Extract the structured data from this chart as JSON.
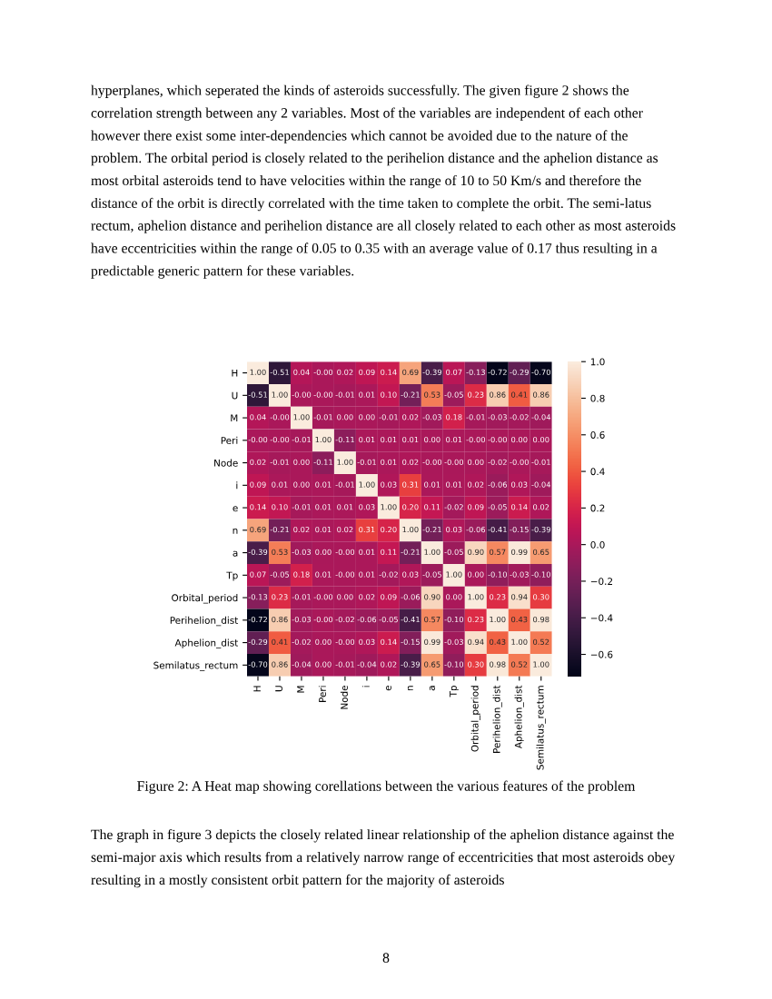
{
  "chart_data": {
    "type": "heatmap",
    "categories": [
      "H",
      "U",
      "M",
      "Peri",
      "Node",
      "i",
      "e",
      "n",
      "a",
      "Tp",
      "Orbital_period",
      "Perihelion_dist",
      "Aphelion_dist",
      "Semilatus_rectum"
    ],
    "y_categories": [
      "H",
      "U",
      "M",
      "Peri",
      "Node",
      "i",
      "e",
      "n",
      "a",
      "Tp",
      "Orbital_period",
      "Perihelion_dist",
      "Aphelion_dist",
      "Semilatus_rectum"
    ],
    "cells": [
      [
        1.0,
        -0.51,
        0.04,
        0.0,
        0.02,
        0.09,
        0.14,
        0.69,
        -0.39,
        0.07,
        -0.13,
        -0.72,
        -0.29,
        -0.7
      ],
      [
        -0.51,
        1.0,
        0.0,
        0.0,
        -0.01,
        0.01,
        0.1,
        -0.21,
        0.53,
        -0.05,
        0.23,
        0.86,
        0.41,
        0.86
      ],
      [
        0.04,
        0.0,
        1.0,
        -0.01,
        0.0,
        0.0,
        -0.01,
        0.02,
        -0.03,
        0.18,
        -0.01,
        -0.03,
        -0.02,
        -0.04
      ],
      [
        0.0,
        0.0,
        -0.01,
        1.0,
        -0.11,
        0.01,
        0.01,
        0.01,
        0.0,
        0.01,
        0.0,
        0.0,
        0.0,
        0.0
      ],
      [
        0.02,
        -0.01,
        0.0,
        -0.11,
        1.0,
        -0.01,
        0.01,
        0.02,
        0.0,
        0.0,
        0.0,
        -0.02,
        0.0,
        -0.01
      ],
      [
        0.09,
        0.01,
        0.0,
        0.01,
        -0.01,
        1.0,
        0.03,
        0.31,
        0.01,
        0.01,
        0.02,
        -0.06,
        0.03,
        -0.04
      ],
      [
        0.14,
        0.1,
        -0.01,
        0.01,
        0.01,
        0.03,
        1.0,
        0.2,
        0.11,
        -0.02,
        0.09,
        -0.05,
        0.14,
        0.02
      ],
      [
        0.69,
        -0.21,
        0.02,
        0.01,
        0.02,
        0.31,
        0.2,
        1.0,
        -0.21,
        0.03,
        -0.06,
        -0.41,
        -0.15,
        -0.39
      ],
      [
        -0.39,
        0.53,
        -0.03,
        0.0,
        0.0,
        0.01,
        0.11,
        -0.21,
        1.0,
        -0.05,
        0.9,
        0.57,
        0.99,
        0.65
      ],
      [
        0.07,
        -0.05,
        0.18,
        0.01,
        0.0,
        0.01,
        -0.02,
        0.03,
        -0.05,
        1.0,
        0.0,
        -0.1,
        -0.03,
        -0.1
      ],
      [
        -0.13,
        0.23,
        -0.01,
        0.0,
        0.0,
        0.02,
        0.09,
        -0.06,
        0.9,
        0.0,
        1.0,
        0.23,
        0.94,
        0.3
      ],
      [
        -0.72,
        0.86,
        -0.03,
        0.0,
        -0.02,
        -0.06,
        -0.05,
        -0.41,
        0.57,
        -0.1,
        0.23,
        1.0,
        0.43,
        0.98
      ],
      [
        -0.29,
        0.41,
        -0.02,
        0.0,
        0.0,
        0.03,
        0.14,
        -0.15,
        0.99,
        -0.03,
        0.94,
        0.43,
        1.0,
        0.52
      ],
      [
        -0.7,
        0.86,
        -0.04,
        0.0,
        -0.01,
        -0.04,
        0.02,
        -0.39,
        0.65,
        -0.1,
        0.3,
        0.98,
        0.52,
        1.0
      ]
    ],
    "cell_labels": [
      [
        "1.00",
        "-0.51",
        "0.04",
        "-0.00",
        "0.02",
        "0.09",
        "0.14",
        "0.69",
        "-0.39",
        "0.07",
        "-0.13",
        "-0.72",
        "-0.29",
        "-0.70"
      ],
      [
        "-0.51",
        "1.00",
        "-0.00",
        "-0.00",
        "-0.01",
        "0.01",
        "0.10",
        "-0.21",
        "0.53",
        "-0.05",
        "0.23",
        "0.86",
        "0.41",
        "0.86"
      ],
      [
        "0.04",
        "-0.00",
        "1.00",
        "-0.01",
        "0.00",
        "0.00",
        "-0.01",
        "0.02",
        "-0.03",
        "0.18",
        "-0.01",
        "-0.03",
        "-0.02",
        "-0.04"
      ],
      [
        "-0.00",
        "-0.00",
        "-0.01",
        "1.00",
        "-0.11",
        "0.01",
        "0.01",
        "0.01",
        "0.00",
        "0.01",
        "-0.00",
        "-0.00",
        "0.00",
        "0.00"
      ],
      [
        "0.02",
        "-0.01",
        "0.00",
        "-0.11",
        "1.00",
        "-0.01",
        "0.01",
        "0.02",
        "-0.00",
        "-0.00",
        "0.00",
        "-0.02",
        "-0.00",
        "-0.01"
      ],
      [
        "0.09",
        "0.01",
        "0.00",
        "0.01",
        "-0.01",
        "1.00",
        "0.03",
        "0.31",
        "0.01",
        "0.01",
        "0.02",
        "-0.06",
        "0.03",
        "-0.04"
      ],
      [
        "0.14",
        "0.10",
        "-0.01",
        "0.01",
        "0.01",
        "0.03",
        "1.00",
        "0.20",
        "0.11",
        "-0.02",
        "0.09",
        "-0.05",
        "0.14",
        "0.02"
      ],
      [
        "0.69",
        "-0.21",
        "0.02",
        "0.01",
        "0.02",
        "0.31",
        "0.20",
        "1.00",
        "-0.21",
        "0.03",
        "-0.06",
        "-0.41",
        "-0.15",
        "-0.39"
      ],
      [
        "-0.39",
        "0.53",
        "-0.03",
        "0.00",
        "-0.00",
        "0.01",
        "0.11",
        "-0.21",
        "1.00",
        "-0.05",
        "0.90",
        "0.57",
        "0.99",
        "0.65"
      ],
      [
        "0.07",
        "-0.05",
        "0.18",
        "0.01",
        "-0.00",
        "0.01",
        "-0.02",
        "0.03",
        "-0.05",
        "1.00",
        "0.00",
        "-0.10",
        "-0.03",
        "-0.10"
      ],
      [
        "-0.13",
        "0.23",
        "-0.01",
        "-0.00",
        "0.00",
        "0.02",
        "0.09",
        "-0.06",
        "0.90",
        "0.00",
        "1.00",
        "0.23",
        "0.94",
        "0.30"
      ],
      [
        "-0.72",
        "0.86",
        "-0.03",
        "-0.00",
        "-0.02",
        "-0.06",
        "-0.05",
        "-0.41",
        "0.57",
        "-0.10",
        "0.23",
        "1.00",
        "0.43",
        "0.98"
      ],
      [
        "-0.29",
        "0.41",
        "-0.02",
        "0.00",
        "-0.00",
        "0.03",
        "0.14",
        "-0.15",
        "0.99",
        "-0.03",
        "0.94",
        "0.43",
        "1.00",
        "0.52"
      ],
      [
        "-0.70",
        "0.86",
        "-0.04",
        "0.00",
        "-0.01",
        "-0.04",
        "0.02",
        "-0.39",
        "0.65",
        "-0.10",
        "0.30",
        "0.98",
        "0.52",
        "1.00"
      ]
    ],
    "clim": [
      -0.72,
      1.0
    ],
    "cticks": [
      {
        "value": -0.6,
        "label": "−0.6"
      },
      {
        "value": -0.4,
        "label": "−0.4"
      },
      {
        "value": -0.2,
        "label": "−0.2"
      },
      {
        "value": 0,
        "label": "0.0"
      },
      0.2,
      0.4,
      0.6,
      0.8,
      {
        "value": 1,
        "label": "1.0"
      }
    ],
    "annotations": [
      "hyperplanes, which seperated the kinds of asteroids successfully. The given figure 2 shows the correlation strength between any 2 variables. Most of the variables are independent of each other however there exist some inter-dependencies which cannot be avoided due to the nature of the problem. The orbital period is closely related to the perihelion distance and the aphelion distance as most orbital asteroids tend to have velocities within the range of 10 to 50 Km/s and therefore the distance of the orbit is directly correlated with the time taken to complete the orbit. The semi-latus rectum, aphelion distance and perihelion distance are all closely related to each other as most asteroids have eccentricities within the range of 0.05 to 0.35 with an average value of 0.17 thus resulting in a predictable generic pattern for these variables.",
      "Figure 2: A Heat map showing corellations between the various features of the problem",
      "The graph in figure 3 depicts the closely related linear relationship of the aphelion distance against the semi-major axis which results from a relatively narrow range of eccentricities that most asteroids obey resulting in a mostly consistent orbit pattern for the majority of asteroids",
      "8"
    ]
  }
}
